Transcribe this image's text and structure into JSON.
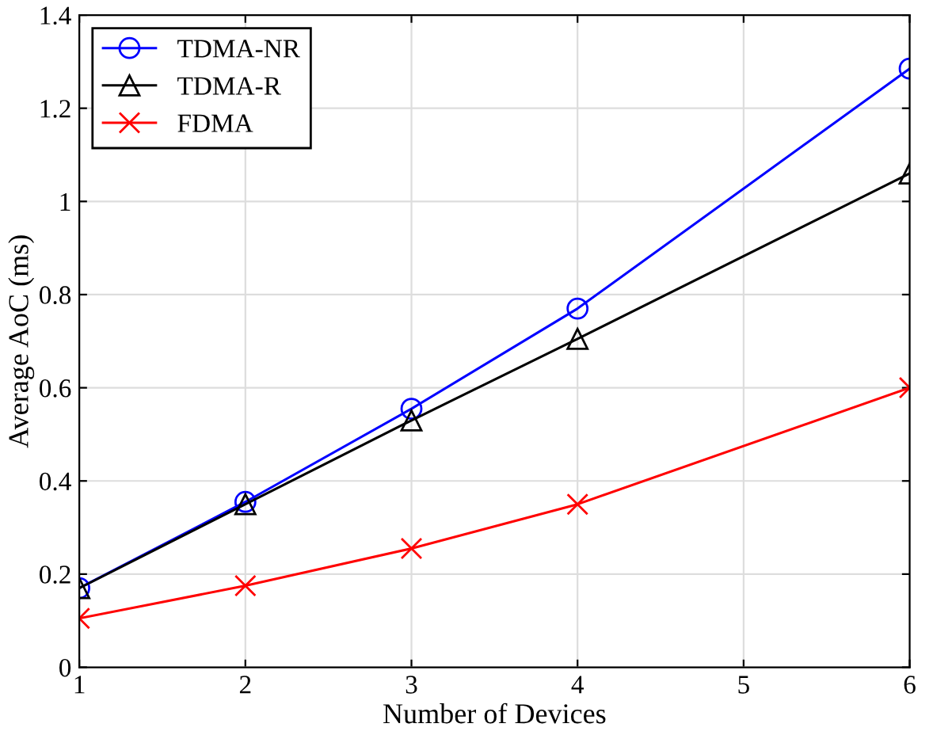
{
  "chart_data": {
    "type": "line",
    "xlabel": "Number of Devices",
    "ylabel": "Average AoC (ms)",
    "series": [
      {
        "name": "TDMA-NR",
        "color": "#0000ff",
        "marker": "circle",
        "x": [
          1,
          2,
          3,
          4,
          6
        ],
        "values": [
          0.17,
          0.355,
          0.555,
          0.77,
          1.285
        ]
      },
      {
        "name": "TDMA-R",
        "color": "#000000",
        "marker": "triangle",
        "x": [
          1,
          2,
          3,
          4,
          6
        ],
        "values": [
          0.17,
          0.35,
          0.53,
          0.705,
          1.06
        ]
      },
      {
        "name": "FDMA",
        "color": "#ff0000",
        "marker": "cross",
        "x": [
          1,
          2,
          3,
          4,
          6
        ],
        "values": [
          0.105,
          0.175,
          0.255,
          0.35,
          0.6
        ]
      }
    ],
    "xlim": [
      1,
      6
    ],
    "xticks": [
      1,
      2,
      3,
      4,
      5,
      6
    ],
    "ylim": [
      0,
      1.4
    ],
    "yticks": [
      0,
      0.2,
      0.4,
      0.6,
      0.8,
      1,
      1.2,
      1.4
    ],
    "grid": true,
    "legend": "top left",
    "line_style": "solid"
  }
}
